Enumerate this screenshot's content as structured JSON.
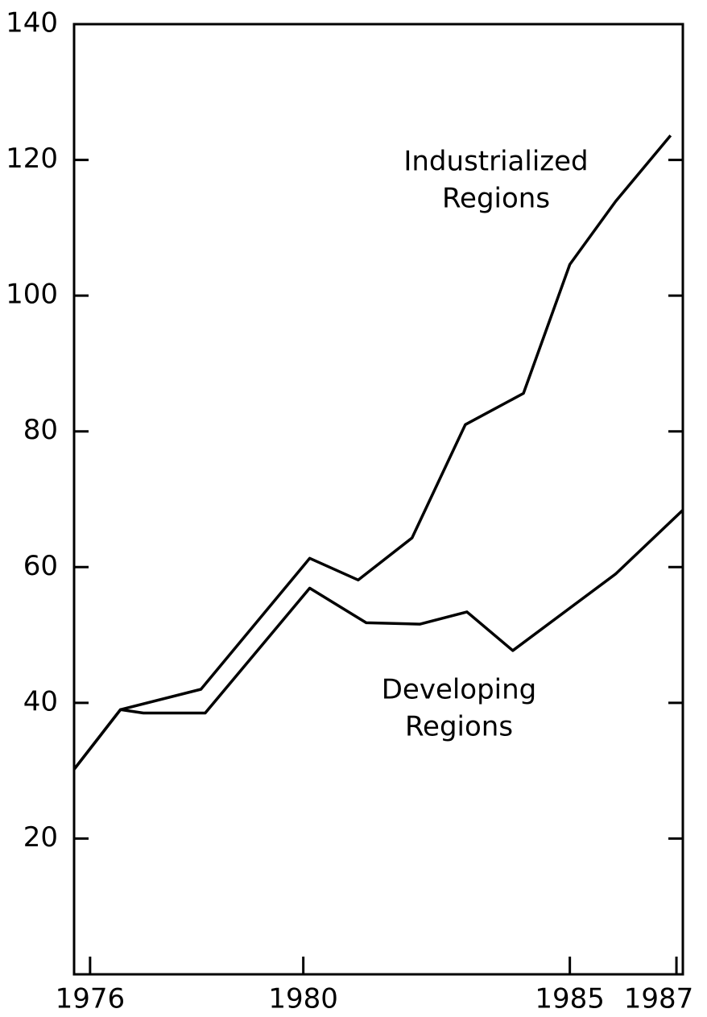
{
  "chart_data": {
    "type": "line",
    "series": [
      {
        "name": "Industrialized Regions",
        "color": "#000000",
        "x": [
          1975.7,
          1976.57,
          1978.08,
          1980.12,
          1981.03,
          1982.04,
          1983.04,
          1984.13,
          1985.0,
          1985.86,
          1986.89
        ],
        "values": [
          30.2,
          39,
          42,
          61.3,
          58.1,
          64.3,
          81,
          85.6,
          104.6,
          113.9,
          123.6
        ]
      },
      {
        "name": "Developing Regions",
        "color": "#000000",
        "x": [
          1975.7,
          1976.57,
          1977.0,
          1978.16,
          1980.12,
          1981.18,
          1982.19,
          1983.07,
          1983.93,
          1985.86,
          1987.12
        ],
        "values": [
          30.2,
          39,
          38.5,
          38.5,
          56.9,
          51.8,
          51.6,
          53.4,
          47.7,
          59,
          68.4
        ]
      }
    ],
    "annotations": [
      [
        "Industrialized",
        "Regions"
      ],
      [
        "Developing",
        "Regions"
      ]
    ],
    "xlim": [
      1975.7,
      1987.12
    ],
    "xticks": [
      1976,
      1980,
      1985,
      1987
    ],
    "ylim": [
      0,
      140
    ],
    "yticks": [
      20,
      40,
      60,
      80,
      100,
      120,
      140
    ]
  }
}
